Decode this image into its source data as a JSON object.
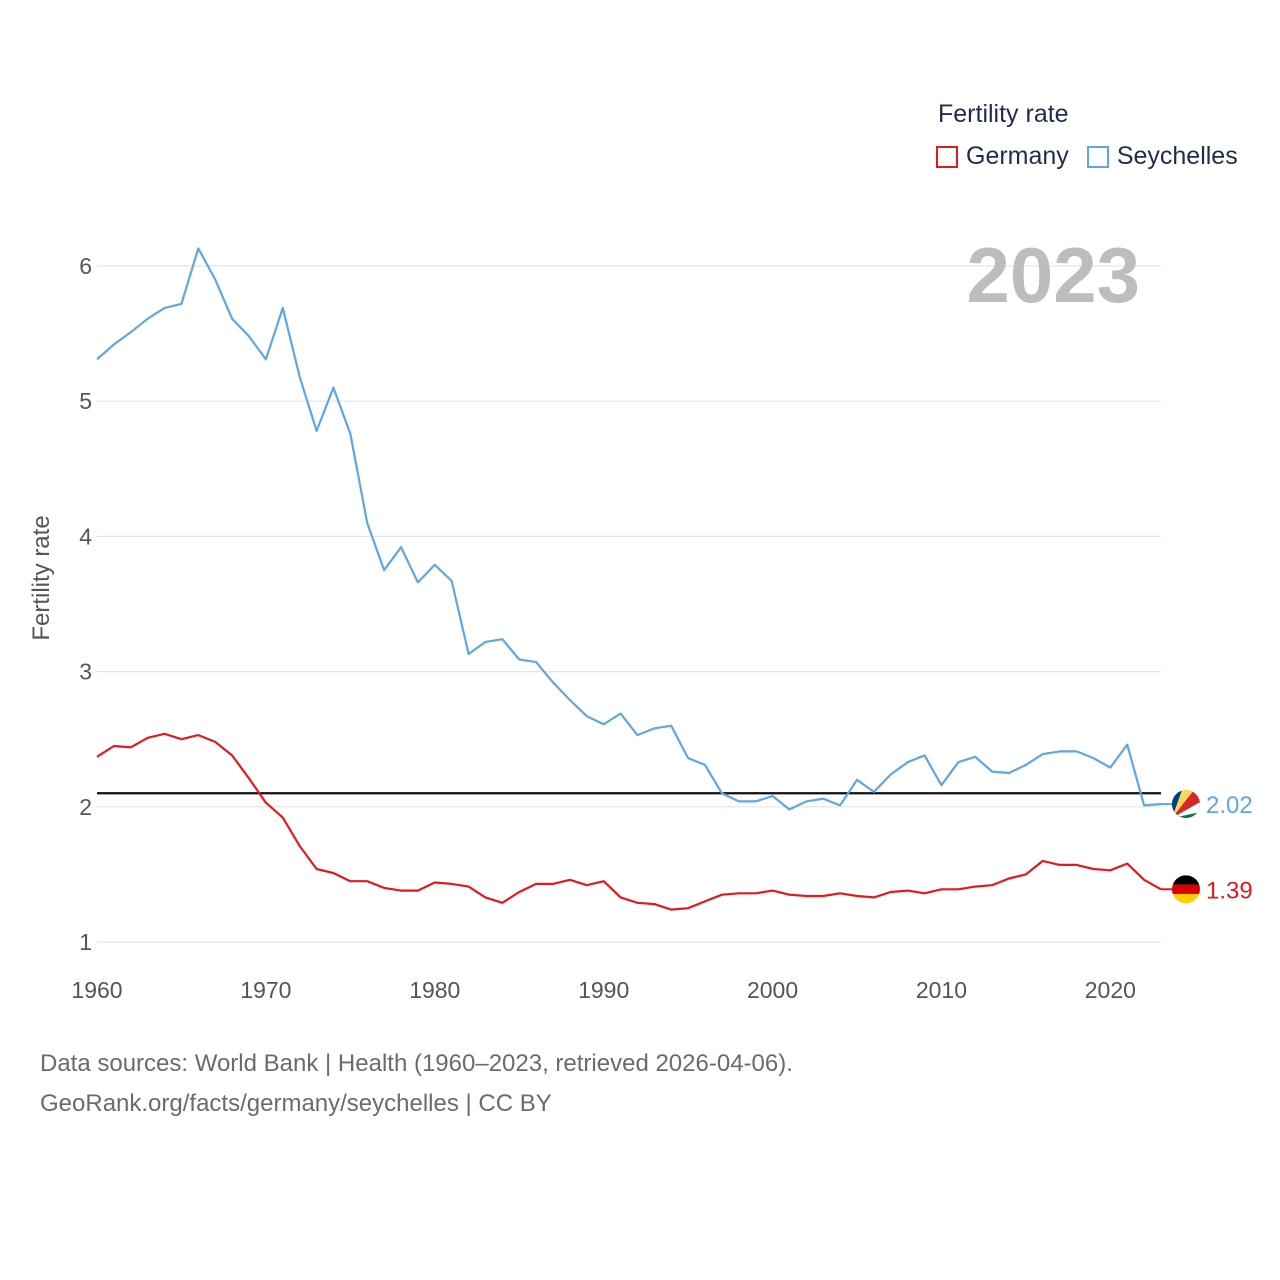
{
  "legend": {
    "title": "Fertility rate",
    "items": [
      {
        "label": "Germany",
        "color": "#e3191c"
      },
      {
        "label": "Seychelles",
        "color": "#5ea6e6"
      }
    ]
  },
  "current_year": "2023",
  "source": {
    "line1": "Data sources: World Bank | Health (1960–2023, retrieved 2026-04-06).",
    "line2": "GeoRank.org/facts/germany/seychelles | CC BY"
  },
  "chart_data": {
    "type": "line",
    "title": "",
    "xlabel": "",
    "ylabel": "Fertility rate",
    "xlim": [
      1960,
      2023
    ],
    "ylim": [
      1,
      6.2
    ],
    "x_ticks": [
      1960,
      1970,
      1980,
      1990,
      2000,
      2010,
      2020
    ],
    "y_ticks": [
      1,
      2,
      3,
      4,
      5,
      6
    ],
    "grid": true,
    "reference_line": 2.1,
    "x": [
      1960,
      1961,
      1962,
      1963,
      1964,
      1965,
      1966,
      1967,
      1968,
      1969,
      1970,
      1971,
      1972,
      1973,
      1974,
      1975,
      1976,
      1977,
      1978,
      1979,
      1980,
      1981,
      1982,
      1983,
      1984,
      1985,
      1986,
      1987,
      1988,
      1989,
      1990,
      1991,
      1992,
      1993,
      1994,
      1995,
      1996,
      1997,
      1998,
      1999,
      2000,
      2001,
      2002,
      2003,
      2004,
      2005,
      2006,
      2007,
      2008,
      2009,
      2010,
      2011,
      2012,
      2013,
      2014,
      2015,
      2016,
      2017,
      2018,
      2019,
      2020,
      2021,
      2022,
      2023
    ],
    "series": [
      {
        "name": "Germany",
        "color": "#e3191c",
        "end_label": "1.39",
        "values": [
          2.37,
          2.45,
          2.44,
          2.51,
          2.54,
          2.5,
          2.53,
          2.48,
          2.38,
          2.21,
          2.03,
          1.92,
          1.71,
          1.54,
          1.51,
          1.45,
          1.45,
          1.4,
          1.38,
          1.38,
          1.44,
          1.43,
          1.41,
          1.33,
          1.29,
          1.37,
          1.43,
          1.43,
          1.46,
          1.42,
          1.45,
          1.33,
          1.29,
          1.28,
          1.24,
          1.25,
          1.3,
          1.35,
          1.36,
          1.36,
          1.38,
          1.35,
          1.34,
          1.34,
          1.36,
          1.34,
          1.33,
          1.37,
          1.38,
          1.36,
          1.39,
          1.39,
          1.41,
          1.42,
          1.47,
          1.5,
          1.6,
          1.57,
          1.57,
          1.54,
          1.53,
          1.58,
          1.46,
          1.39
        ]
      },
      {
        "name": "Seychelles",
        "color": "#5ea6e6",
        "end_label": "2.02",
        "values": [
          5.31,
          5.42,
          5.51,
          5.61,
          5.69,
          5.72,
          6.13,
          5.9,
          5.61,
          5.48,
          5.31,
          5.69,
          5.18,
          4.78,
          5.1,
          4.76,
          4.1,
          3.75,
          3.92,
          3.66,
          3.79,
          3.67,
          3.13,
          3.22,
          3.24,
          3.09,
          3.07,
          2.92,
          2.79,
          2.67,
          2.61,
          2.69,
          2.53,
          2.58,
          2.6,
          2.36,
          2.31,
          2.1,
          2.04,
          2.04,
          2.08,
          1.98,
          2.04,
          2.06,
          2.01,
          2.2,
          2.11,
          2.24,
          2.33,
          2.38,
          2.16,
          2.33,
          2.37,
          2.26,
          2.25,
          2.31,
          2.39,
          2.41,
          2.41,
          2.36,
          2.29,
          2.46,
          2.01,
          2.02
        ]
      }
    ]
  }
}
